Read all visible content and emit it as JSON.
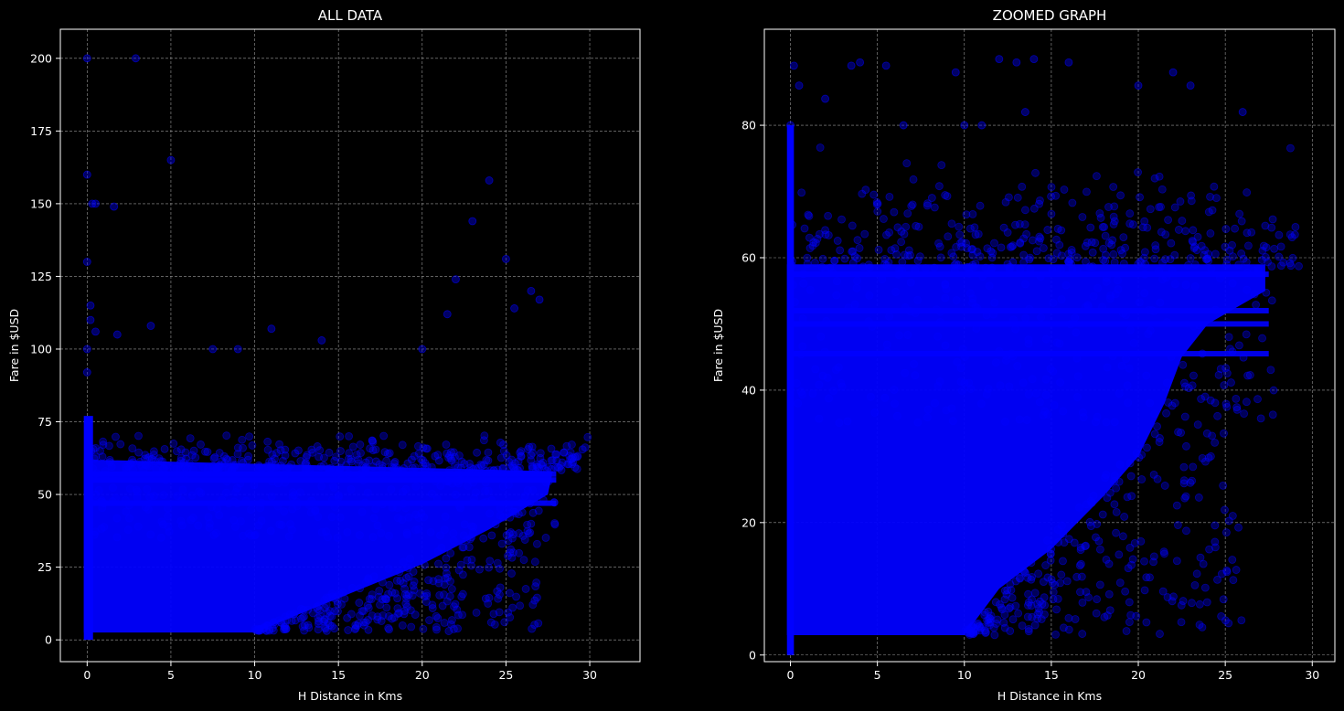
{
  "chart_data": [
    {
      "type": "scatter",
      "title": "ALL DATA",
      "xlabel": "H Distance in Kms",
      "ylabel": "Fare in $USD",
      "xlim": [
        -1.6,
        33.0
      ],
      "ylim": [
        -7.5,
        210
      ],
      "xticks": [
        0,
        5,
        10,
        15,
        20,
        25,
        30
      ],
      "yticks": [
        0,
        25,
        50,
        75,
        100,
        125,
        150,
        175,
        200
      ],
      "grid": true,
      "point_color": "#0000ff",
      "dense_region": {
        "description_points": [
          [
            0,
            3
          ],
          [
            10,
            3
          ],
          [
            27.5,
            52
          ],
          [
            27.5,
            58
          ],
          [
            0,
            60
          ]
        ],
        "bands_y": [
          57,
          55,
          47
        ]
      },
      "outliers": [
        [
          0,
          200
        ],
        [
          2.9,
          200
        ],
        [
          0,
          160
        ],
        [
          0.3,
          150
        ],
        [
          0.5,
          150
        ],
        [
          1.6,
          149
        ],
        [
          0,
          130
        ],
        [
          5,
          165
        ],
        [
          0.2,
          115
        ],
        [
          0.2,
          110
        ],
        [
          0.5,
          106
        ],
        [
          1.8,
          105
        ],
        [
          3.8,
          108
        ],
        [
          11,
          107
        ],
        [
          7.5,
          100
        ],
        [
          9,
          100
        ],
        [
          14,
          103
        ],
        [
          24,
          158
        ],
        [
          23,
          144
        ],
        [
          25,
          131
        ],
        [
          22,
          124
        ],
        [
          26.5,
          120
        ],
        [
          27,
          117
        ],
        [
          25.5,
          114
        ],
        [
          21.5,
          112
        ],
        [
          20,
          100
        ],
        [
          0,
          100
        ],
        [
          0,
          92
        ]
      ]
    },
    {
      "type": "scatter",
      "title": "ZOOMED GRAPH",
      "xlabel": "H Distance in Kms",
      "ylabel": "Fare in $USD",
      "xlim": [
        -1.5,
        31.3
      ],
      "ylim": [
        -1,
        94.5
      ],
      "xticks": [
        0,
        5,
        10,
        15,
        20,
        25,
        30
      ],
      "yticks": [
        0,
        20,
        40,
        60,
        80
      ],
      "grid": true,
      "point_color": "#0000ff",
      "dense_region": {
        "bands_y": [
          57.5,
          52,
          50,
          45.5
        ]
      },
      "outliers": [
        [
          0.2,
          89
        ],
        [
          3.5,
          89
        ],
        [
          4,
          89.5
        ],
        [
          5.5,
          89
        ],
        [
          9.5,
          88
        ],
        [
          12,
          90
        ],
        [
          13,
          89.5
        ],
        [
          14,
          90
        ],
        [
          16,
          89.5
        ],
        [
          20,
          86
        ],
        [
          22,
          88
        ],
        [
          23,
          86
        ],
        [
          26,
          82
        ],
        [
          0,
          80
        ],
        [
          6.5,
          80
        ],
        [
          10,
          80
        ],
        [
          11,
          80
        ],
        [
          13.5,
          82
        ],
        [
          2,
          84
        ],
        [
          0.5,
          86
        ]
      ]
    }
  ]
}
